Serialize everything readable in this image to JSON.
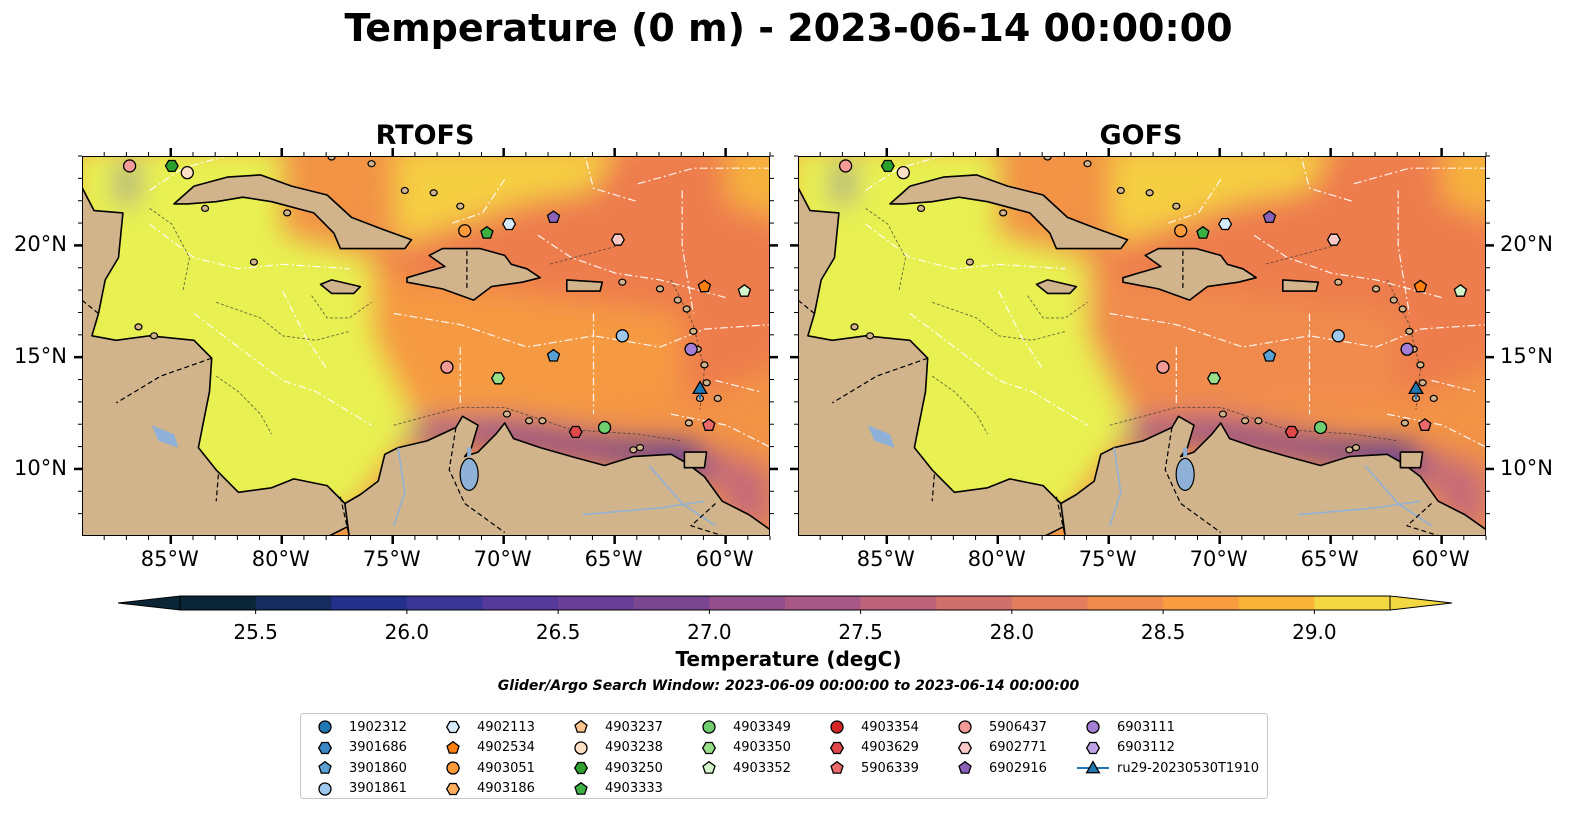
{
  "title": "Temperature (0 m) - 2023-06-14 00:00:00",
  "panels": [
    {
      "title": "RTOFS"
    },
    {
      "title": "GOFS"
    }
  ],
  "map_extent": {
    "lon": [
      -89,
      -58
    ],
    "lat": [
      7,
      24
    ]
  },
  "lon_ticks": [
    "85°W",
    "80°W",
    "75°W",
    "70°W",
    "65°W",
    "60°W"
  ],
  "lat_ticks": [
    "20°N",
    "15°N",
    "10°N"
  ],
  "colorbar": {
    "label": "Temperature (degC)",
    "min": 25.25,
    "max": 29.25,
    "step": 0.25,
    "ticks": [
      "25.5",
      "26.0",
      "26.5",
      "27.0",
      "27.5",
      "28.0",
      "28.5",
      "29.0"
    ],
    "colors": [
      "#0a2536",
      "#142c5e",
      "#24318a",
      "#3b3596",
      "#55399b",
      "#683f96",
      "#7b4690",
      "#934f8c",
      "#a85884",
      "#bd6379",
      "#d0706c",
      "#e27d5d",
      "#f08b4e",
      "#f99c41",
      "#fbb438",
      "#f3d841"
    ]
  },
  "search_window": "Glider/Argo Search Window: 2023-06-09 00:00:00 to 2023-06-14 00:00:00",
  "legend": {
    "columns": [
      [
        {
          "label": "1902312",
          "marker": "circle",
          "color": "#1f77b4"
        },
        {
          "label": "3901686",
          "marker": "hexagon",
          "color": "#3a87c4"
        },
        {
          "label": "3901860",
          "marker": "pentagon",
          "color": "#5aa0d4"
        },
        {
          "label": "3901861",
          "marker": "circle",
          "color": "#9ec9ec"
        }
      ],
      [
        {
          "label": "4902113",
          "marker": "hexagon",
          "color": "#d6ebfb"
        },
        {
          "label": "4902534",
          "marker": "pentagon",
          "color": "#ff7f0e"
        },
        {
          "label": "4903051",
          "marker": "circle",
          "color": "#ff9a3a"
        },
        {
          "label": "4903186",
          "marker": "hexagon",
          "color": "#ffae5c"
        }
      ],
      [
        {
          "label": "4903237",
          "marker": "pentagon",
          "color": "#ffc58e"
        },
        {
          "label": "4903238",
          "marker": "circle",
          "color": "#ffe0c4"
        },
        {
          "label": "4903250",
          "marker": "hexagon",
          "color": "#2ca02c"
        },
        {
          "label": "4903333",
          "marker": "pentagon",
          "color": "#3cb043"
        }
      ],
      [
        {
          "label": "4903349",
          "marker": "circle",
          "color": "#6fcf6f"
        },
        {
          "label": "4903350",
          "marker": "hexagon",
          "color": "#98df8a"
        },
        {
          "label": "4903352",
          "marker": "pentagon",
          "color": "#d2f5cc"
        }
      ],
      [
        {
          "label": "4903354",
          "marker": "circle",
          "color": "#d62728"
        },
        {
          "label": "4903629",
          "marker": "hexagon",
          "color": "#e0484a"
        },
        {
          "label": "5906339",
          "marker": "pentagon",
          "color": "#ea6a6a"
        }
      ],
      [
        {
          "label": "5906437",
          "marker": "circle",
          "color": "#f49a98"
        },
        {
          "label": "6902771",
          "marker": "hexagon",
          "color": "#fcc9c7"
        },
        {
          "label": "6902916",
          "marker": "pentagon",
          "color": "#8a62b8"
        }
      ],
      [
        {
          "label": "6903111",
          "marker": "circle",
          "color": "#a37ed4"
        },
        {
          "label": "6903112",
          "marker": "hexagon",
          "color": "#c0a3e4"
        },
        {
          "label": "ru29-20230530T1910",
          "marker": "line-triangle",
          "color": "#1f77b4"
        }
      ]
    ]
  },
  "floats": [
    {
      "id": "5906437",
      "lon": -86.9,
      "lat": 23.6
    },
    {
      "id": "4903250",
      "lon": -85.0,
      "lat": 23.6
    },
    {
      "id": "4903238",
      "lon": -84.3,
      "lat": 23.3
    },
    {
      "id": "4903051",
      "lon": -71.8,
      "lat": 20.7
    },
    {
      "id": "4903333",
      "lon": -70.8,
      "lat": 20.6
    },
    {
      "id": "4902113",
      "lon": -69.8,
      "lat": 21.0
    },
    {
      "id": "6902916",
      "lon": -67.8,
      "lat": 21.3
    },
    {
      "id": "6902771",
      "lon": -64.9,
      "lat": 20.3
    },
    {
      "id": "4902534",
      "lon": -61.0,
      "lat": 18.2
    },
    {
      "id": "4903352",
      "lon": -59.2,
      "lat": 18.0
    },
    {
      "id": "3901861",
      "lon": -64.7,
      "lat": 16.0
    },
    {
      "id": "6903111",
      "lon": -61.6,
      "lat": 15.4
    },
    {
      "id": "3901860",
      "lon": -67.8,
      "lat": 15.1
    },
    {
      "id": "5906437",
      "lon": -72.6,
      "lat": 14.6
    },
    {
      "id": "4903350",
      "lon": -70.3,
      "lat": 14.1
    },
    {
      "id": "ru29-20230530T1910",
      "lon": -61.2,
      "lat": 13.6
    },
    {
      "id": "4903349",
      "lon": -65.5,
      "lat": 11.9
    },
    {
      "id": "4903629",
      "lon": -66.8,
      "lat": 11.7
    },
    {
      "id": "5906339",
      "lon": -60.8,
      "lat": 12.0
    }
  ]
}
